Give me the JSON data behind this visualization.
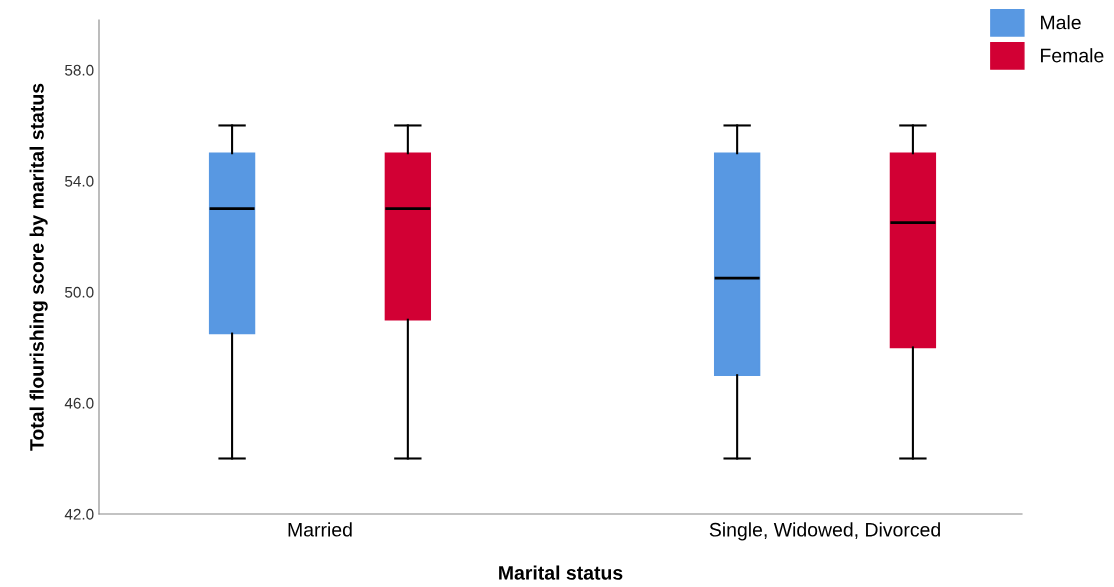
{
  "chart_data": {
    "type": "box",
    "xlabel": "Marital status",
    "ylabel": "Total flourishing score by marital status",
    "categories": [
      "Married",
      "Single, Widowed, Divorced"
    ],
    "series": [
      {
        "name": "Male",
        "color": "#5898e2",
        "boxes": [
          {
            "low": 44,
            "q1": 48.5,
            "median": 53,
            "q3": 55,
            "high": 56
          },
          {
            "low": 44,
            "q1": 47,
            "median": 50.5,
            "q3": 55,
            "high": 56
          }
        ]
      },
      {
        "name": "Female",
        "color": "#d20034",
        "boxes": [
          {
            "low": 44,
            "q1": 49,
            "median": 53,
            "q3": 55,
            "high": 56
          },
          {
            "low": 44,
            "q1": 48,
            "median": 52.5,
            "q3": 55,
            "high": 56
          }
        ]
      }
    ],
    "ylim": [
      42,
      59.8
    ],
    "yticks": [
      {
        "value": 42,
        "label": "42.0"
      },
      {
        "value": 46,
        "label": "46.0"
      },
      {
        "value": 50,
        "label": "50.0"
      },
      {
        "value": 54,
        "label": "54.0"
      },
      {
        "value": 58,
        "label": "58.0"
      }
    ],
    "grid": false,
    "legend": "top right"
  }
}
